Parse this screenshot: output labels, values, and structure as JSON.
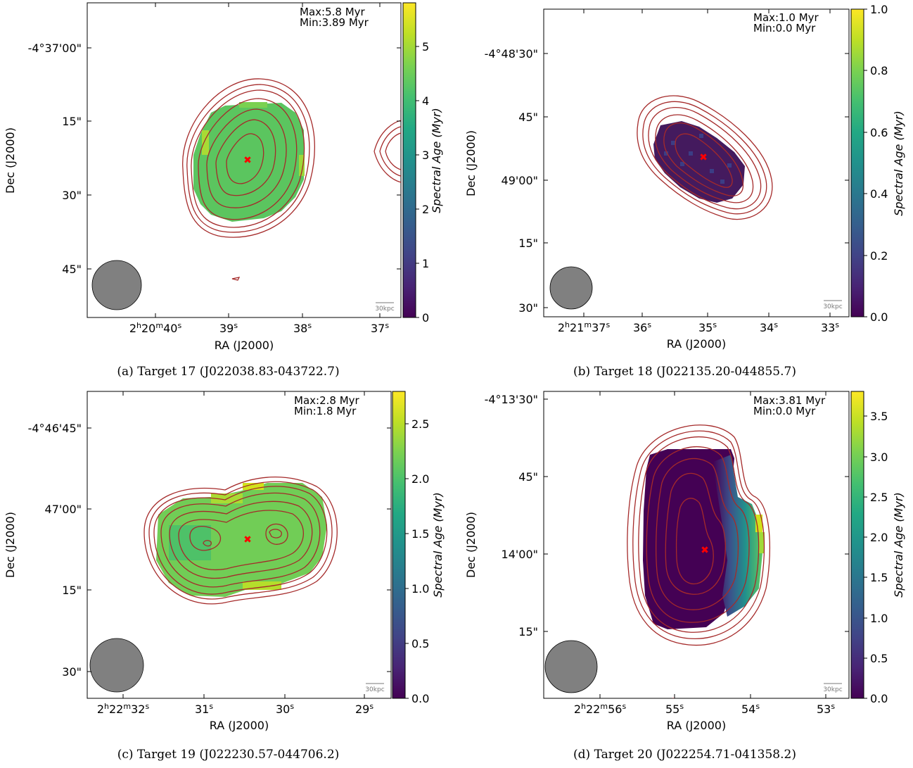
{
  "chart_data": [
    {
      "type": "heatmap",
      "caption": "(a) Target 17 (J022038.83-043722.7)",
      "annotation_max": "Max:5.8 Myr",
      "annotation_min": "Min:3.89 Myr",
      "xlabel": "RA (J2000)",
      "ylabel": "Dec (J2000)",
      "x_ticks": [
        {
          "pre": "2",
          "s1": "h",
          "mid": "20",
          "s2": "m",
          "post": "40",
          "s3": "s"
        },
        {
          "post": "39",
          "s3": "s"
        },
        {
          "post": "38",
          "s3": "s"
        },
        {
          "post": "37",
          "s3": "s"
        }
      ],
      "y_ticks": [
        "-4°37'00\"",
        "15\"",
        "30\"",
        "45\""
      ],
      "colorbar": {
        "label": "Spectral Age (Myr)",
        "range": [
          0,
          5.8
        ],
        "ticks": [
          "0",
          "1",
          "2",
          "3",
          "4",
          "5"
        ],
        "colormap": "viridis"
      },
      "scale_bar_label": "30kpc",
      "map_value_myr": 4.0,
      "contour_color": "#a52a2a",
      "marker_color": "#ff0000"
    },
    {
      "type": "heatmap",
      "caption": "(b) Target 18 (J022135.20-044855.7)",
      "annotation_max": "Max:1.0 Myr",
      "annotation_min": "Min:0.0 Myr",
      "xlabel": "RA (J2000)",
      "ylabel": "Dec (J2000)",
      "x_ticks": [
        {
          "pre": "2",
          "s1": "h",
          "mid": "21",
          "s2": "m",
          "post": "37",
          "s3": "s"
        },
        {
          "post": "36",
          "s3": "s"
        },
        {
          "post": "35",
          "s3": "s"
        },
        {
          "post": "34",
          "s3": "s"
        },
        {
          "post": "33",
          "s3": "s"
        }
      ],
      "y_ticks": [
        "-4°48'30\"",
        "45\"",
        "49'00\"",
        "15\"",
        "30\""
      ],
      "colorbar": {
        "label": "Spectral Age (Myr)",
        "range": [
          0,
          1.0
        ],
        "ticks": [
          "0.0",
          "0.2",
          "0.4",
          "0.6",
          "0.8",
          "1.0"
        ],
        "colormap": "viridis"
      },
      "scale_bar_label": "30kpc",
      "map_value_myr": 0.0,
      "contour_color": "#a52a2a",
      "marker_color": "#ff0000"
    },
    {
      "type": "heatmap",
      "caption": "(c) Target 19 (J022230.57-044706.2)",
      "annotation_max": "Max:2.8 Myr",
      "annotation_min": "Min:1.8 Myr",
      "xlabel": "RA (J2000)",
      "ylabel": "Dec (J2000)",
      "x_ticks": [
        {
          "pre": "2",
          "s1": "h",
          "mid": "22",
          "s2": "m",
          "post": "32",
          "s3": "s"
        },
        {
          "post": "31",
          "s3": "s"
        },
        {
          "post": "30",
          "s3": "s"
        },
        {
          "post": "29",
          "s3": "s"
        }
      ],
      "y_ticks": [
        "-4°46'45\"",
        "47'00\"",
        "15\"",
        "30\""
      ],
      "colorbar": {
        "label": "Spectral Age (Myr)",
        "range": [
          0,
          2.8
        ],
        "ticks": [
          "0.0",
          "0.5",
          "1.0",
          "1.5",
          "2.0",
          "2.5"
        ],
        "colormap": "viridis"
      },
      "scale_bar_label": "30kpc",
      "map_value_myr": 2.1,
      "contour_color": "#a52a2a",
      "marker_color": "#ff0000"
    },
    {
      "type": "heatmap",
      "caption": "(d) Target 20 (J022254.71-041358.2)",
      "annotation_max": "Max:3.81 Myr",
      "annotation_min": "Min:0.0 Myr",
      "xlabel": "RA (J2000)",
      "ylabel": "Dec (J2000)",
      "x_ticks": [
        {
          "pre": "2",
          "s1": "h",
          "mid": "22",
          "s2": "m",
          "post": "56",
          "s3": "s"
        },
        {
          "post": "55",
          "s3": "s"
        },
        {
          "post": "54",
          "s3": "s"
        },
        {
          "post": "53",
          "s3": "s"
        }
      ],
      "y_ticks": [
        "-4°13'30\"",
        "45\"",
        "14'00\"",
        "15\""
      ],
      "colorbar": {
        "label": "Spectral Age (Myr)",
        "range": [
          0,
          3.81
        ],
        "ticks": [
          "0.0",
          "0.5",
          "1.0",
          "1.5",
          "2.0",
          "2.5",
          "3.0",
          "3.5"
        ],
        "colormap": "viridis"
      },
      "scale_bar_label": "30kpc",
      "map_value_myr": 0.0,
      "contour_color": "#a52a2a",
      "marker_color": "#ff0000"
    }
  ]
}
